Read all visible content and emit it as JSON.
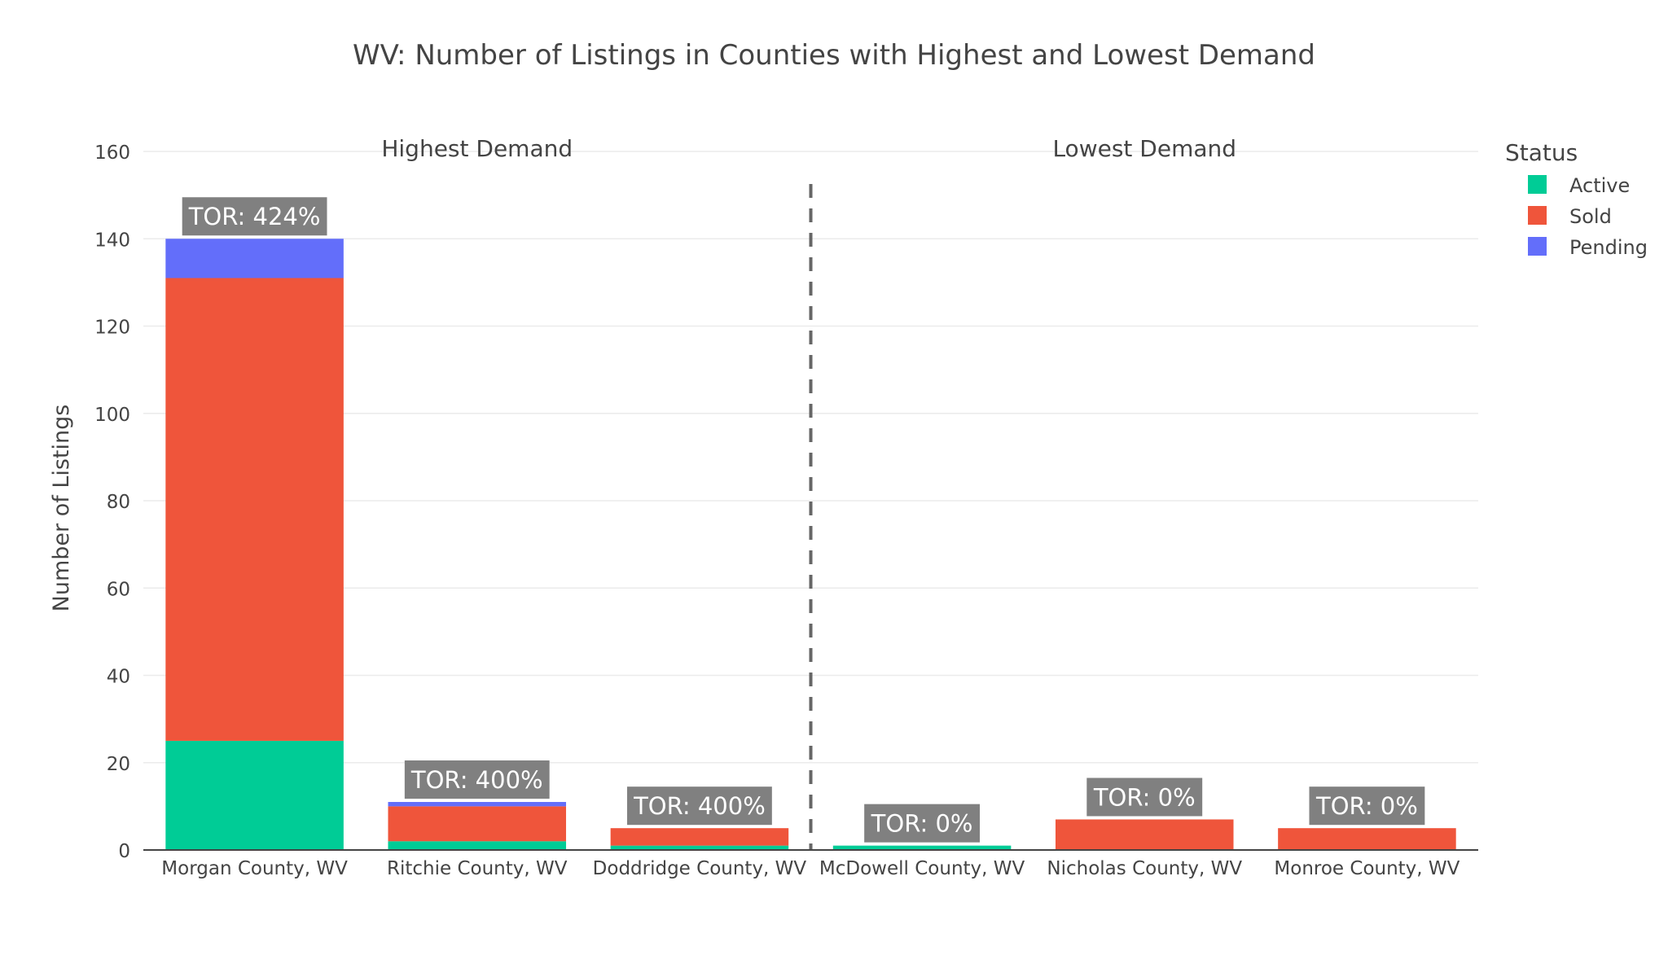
{
  "chart_data": {
    "type": "bar",
    "title": "WV: Number of Listings in Counties with Highest and Lowest Demand",
    "xlabel": "",
    "ylabel": "Number of Listings",
    "ylim": [
      0,
      160
    ],
    "yticks": [
      0,
      20,
      40,
      60,
      80,
      100,
      120,
      140,
      160
    ],
    "grid": true,
    "barmode": "stack",
    "categories": [
      "Morgan County, WV",
      "Ritchie County, WV",
      "Doddridge County, WV",
      "McDowell County, WV",
      "Nicholas County, WV",
      "Monroe County, WV"
    ],
    "series": [
      {
        "name": "Active",
        "color": "#00cc96",
        "values": [
          25,
          2,
          1,
          1,
          0,
          0
        ]
      },
      {
        "name": "Sold",
        "color": "#ef553b",
        "values": [
          106,
          8,
          4,
          0,
          7,
          5
        ]
      },
      {
        "name": "Pending",
        "color": "#636efa",
        "values": [
          9,
          1,
          0,
          0,
          0,
          0
        ]
      }
    ],
    "bar_labels": [
      "TOR: 424%",
      "TOR: 400%",
      "TOR: 400%",
      "TOR: 0%",
      "TOR: 0%",
      "TOR: 0%"
    ],
    "groups": [
      {
        "label": "Highest Demand",
        "start": 0,
        "end": 2
      },
      {
        "label": "Lowest Demand",
        "start": 3,
        "end": 5
      }
    ],
    "legend": {
      "title": "Status",
      "position": "top-right"
    },
    "label_box_color": "#808080",
    "divider_color": "#666666"
  }
}
